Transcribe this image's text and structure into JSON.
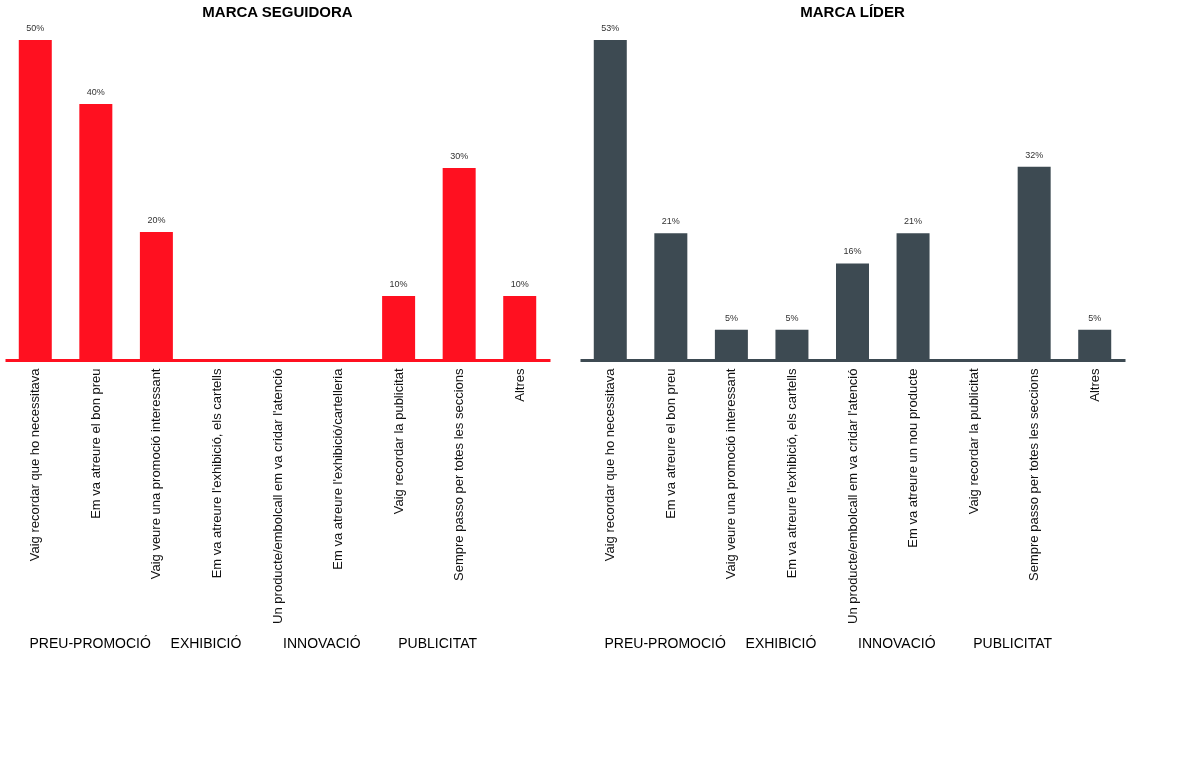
{
  "chart_data": [
    {
      "type": "bar",
      "title": "MARCA SEGUIDORA",
      "categories": [
        "Vaig recordar que ho necessitava",
        "Em va atreure el bon preu",
        "Vaig veure una promoció interessant",
        "Em va atreure l'exhibició, els cartells",
        "Un producte/embolcall em va cridar l'atenció",
        "Em va atreure l'exhibició/cartelleria",
        "Vaig recordar la publicitat",
        "Sempre passo per totes les seccions",
        "Altres"
      ],
      "values": [
        50,
        40,
        20,
        0,
        0,
        0,
        10,
        30,
        10
      ],
      "value_labels": [
        "50%",
        "40%",
        "20%",
        null,
        null,
        null,
        "10%",
        "30%",
        "10%"
      ],
      "color": "#ff1020",
      "annotations": [
        "PREU-PROMOCIÓ",
        "EXHIBICIÓ",
        "INNOVACIÓ",
        "PUBLICITAT"
      ]
    },
    {
      "type": "bar",
      "title": "MARCA LÍDER",
      "categories": [
        "Vaig recordar que ho necessitava",
        "Em va atreure el bon preu",
        "Vaig veure una promoció interessant",
        "Em va atreure l'exhibició, els cartells",
        "Un producte/embolcall em va cridar l'atenció",
        "Em va atreure un nou producte",
        "Vaig recordar la publicitat",
        "Sempre passo per totes les seccions",
        "Altres"
      ],
      "values": [
        53,
        21,
        5,
        5,
        16,
        21,
        0,
        32,
        5
      ],
      "value_labels": [
        "53%",
        "21%",
        "5%",
        "5%",
        "16%",
        "21%",
        null,
        "32%",
        "5%"
      ],
      "color": "#3d4a52",
      "annotations": [
        "PREU-PROMOCIÓ",
        "EXHIBICIÓ",
        "INNOVACIÓ",
        "PUBLICITAT"
      ]
    }
  ]
}
